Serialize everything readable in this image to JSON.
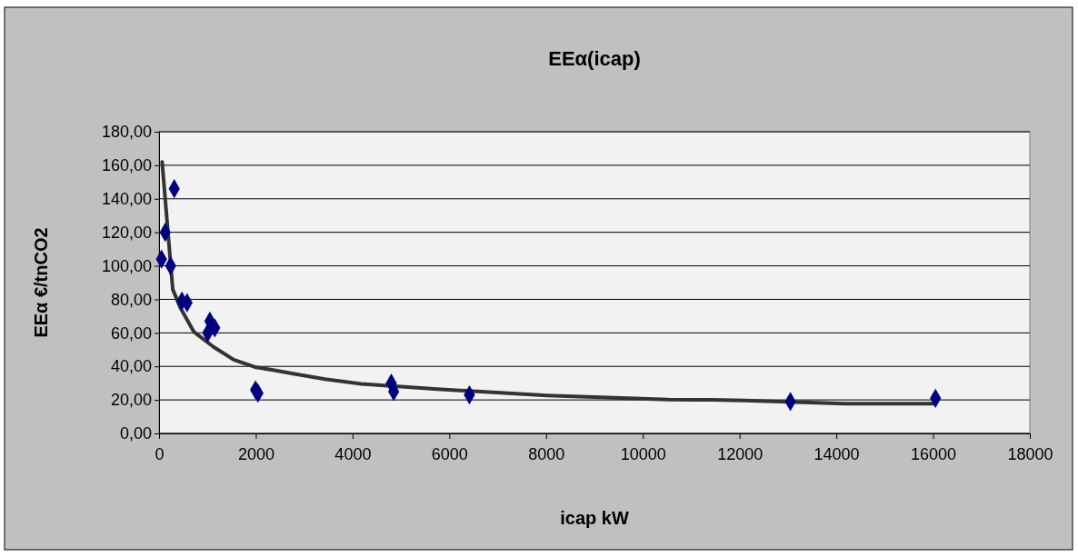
{
  "chart_data": {
    "type": "scatter",
    "title": "EEα(icap)",
    "xlabel": "icap kW",
    "ylabel": "EEα €/tnCO2",
    "xlim": [
      0,
      18000
    ],
    "xticks": [
      0,
      2000,
      4000,
      6000,
      8000,
      10000,
      12000,
      14000,
      16000,
      18000
    ],
    "ylim": [
      0,
      180
    ],
    "yticks": [
      {
        "value": 0,
        "label": "0,00"
      },
      {
        "value": 20,
        "label": "20,00"
      },
      {
        "value": 40,
        "label": "40,00"
      },
      {
        "value": 60,
        "label": "60,00"
      },
      {
        "value": 80,
        "label": "80,00"
      },
      {
        "value": 100,
        "label": "100,00"
      },
      {
        "value": 120,
        "label": "120,00"
      },
      {
        "value": 140,
        "label": "140,00"
      },
      {
        "value": 160,
        "label": "160,00"
      },
      {
        "value": 180,
        "label": "180,00"
      }
    ],
    "grid": "y",
    "series": [
      {
        "color": "#000080",
        "marker": "diamond",
        "x": [
          50,
          126,
          239,
          314,
          472,
          579,
          1006,
          1050,
          1151,
          1994,
          2044,
          4800,
          4850,
          6415,
          13050,
          16050
        ],
        "values": [
          104,
          120,
          100,
          146,
          79,
          78,
          60,
          67,
          63,
          26,
          24,
          30,
          25,
          23,
          19,
          21
        ]
      },
      {
        "type": "line",
        "color": "#333333",
        "marker": "none",
        "line_style": "solid",
        "x": [
          63,
          283,
          440,
          723,
          1132,
          1541,
          1981,
          2358,
          2799,
          3428,
          4182,
          5755,
          8019,
          10528,
          11415,
          12107,
          14183,
          16050
        ],
        "values": [
          162,
          86,
          75,
          60.5,
          51.5,
          44,
          39.6,
          37.8,
          35.5,
          32.4,
          29.6,
          26.4,
          22.7,
          20.2,
          20,
          19.6,
          17.8,
          17.8
        ]
      }
    ]
  }
}
